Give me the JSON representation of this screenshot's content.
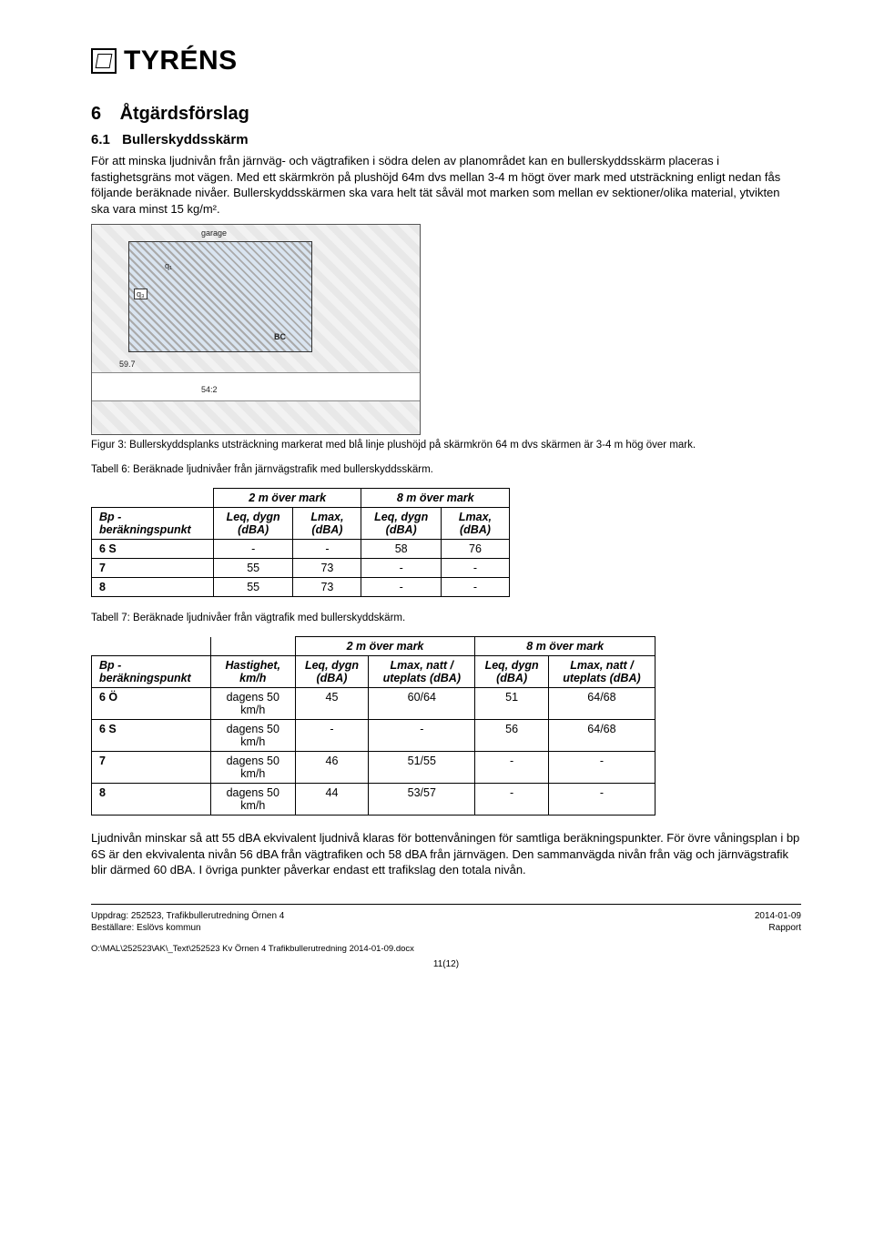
{
  "logo_text": "TYRÉNS",
  "section_number": "6",
  "section_title": "Åtgärdsförslag",
  "sub_number": "6.1",
  "sub_title": "Bullerskyddsskärm",
  "para1": "För att minska ljudnivån från järnväg- och vägtrafiken i södra delen av planområdet kan en bullerskyddsskärm placeras i fastighetsgräns mot vägen. Med ett skärmkrön på plushöjd 64m dvs mellan 3-4 m högt över mark med utsträckning enligt nedan fås följande beräknade nivåer. Bullerskyddsskärmen ska vara helt tät såväl mot marken som mellan ev sektioner/olika material, ytvikten ska vara minst 15 kg/m².",
  "figure_labels": {
    "garage": "garage",
    "bc": "BC",
    "n597": "59.7",
    "n542": "54:2",
    "q1": "q₁",
    "q3": "q₃"
  },
  "figure_caption": "Figur 3: Bullerskyddsplanks utsträckning markerat med blå linje plushöjd på skärmkrön 64 m dvs skärmen är 3-4 m hög över mark.",
  "table6_caption": "Tabell 6: Beräknade ljudnivåer från järnvägstrafik med bullerskyddsskärm.",
  "table6": {
    "group_2m": "2 m över mark",
    "group_8m": "8 m över mark",
    "bp_label": "Bp - beräkningspunkt",
    "leq_label": "Leq, dygn (dBA)",
    "lmax_label": "Lmax, (dBA)",
    "lmax_label2": "Lmax, (dBA)",
    "rows": [
      {
        "bp": "6 S",
        "leq2": "-",
        "lmax2": "-",
        "leq8": "58",
        "lmax8": "76"
      },
      {
        "bp": "7",
        "leq2": "55",
        "lmax2": "73",
        "leq8": "-",
        "lmax8": "-"
      },
      {
        "bp": "8",
        "leq2": "55",
        "lmax2": "73",
        "leq8": "-",
        "lmax8": "-"
      }
    ]
  },
  "table7_caption": "Tabell 7: Beräknade ljudnivåer från vägtrafik med bullerskyddskärm.",
  "table7": {
    "group_2m": "2 m över mark",
    "group_8m": "8 m över mark",
    "bp_label": "Bp - beräkningspunkt",
    "hast_label": "Hastighet, km/h",
    "leq_label": "Leq, dygn (dBA)",
    "lmax_label": "Lmax, natt / uteplats (dBA)",
    "rows": [
      {
        "bp": "6 Ö",
        "h": "dagens 50 km/h",
        "leq2": "45",
        "lmax2": "60/64",
        "leq8": "51",
        "lmax8": "64/68"
      },
      {
        "bp": "6 S",
        "h": "dagens 50 km/h",
        "leq2": "-",
        "lmax2": "-",
        "leq8": "56",
        "lmax8": "64/68"
      },
      {
        "bp": "7",
        "h": "dagens 50 km/h",
        "leq2": "46",
        "lmax2": "51/55",
        "leq8": "-",
        "lmax8": "-"
      },
      {
        "bp": "8",
        "h": "dagens 50 km/h",
        "leq2": "44",
        "lmax2": "53/57",
        "leq8": "-",
        "lmax8": "-"
      }
    ]
  },
  "para2": "Ljudnivån minskar så att 55 dBA ekvivalent ljudnivå klaras för bottenvåningen för samtliga beräkningspunkter. För övre våningsplan i bp 6S är den ekvivalenta nivån 56 dBA från vägtrafiken och 58 dBA från järnvägen. Den sammanvägda nivån från väg och järnvägstrafik blir därmed 60 dBA. I övriga punkter påverkar endast ett trafikslag den totala nivån.",
  "footer_left1": "Uppdrag: 252523, Trafikbullerutredning Örnen 4",
  "footer_left2": "Beställare: Eslövs kommun",
  "footer_right1": "2014-01-09",
  "footer_right2": "Rapport",
  "filepath": "O:\\MAL\\252523\\AK\\_Text\\252523 Kv Örnen 4 Trafikbullerutredning 2014-01-09.docx",
  "pagenum": "11(12)"
}
